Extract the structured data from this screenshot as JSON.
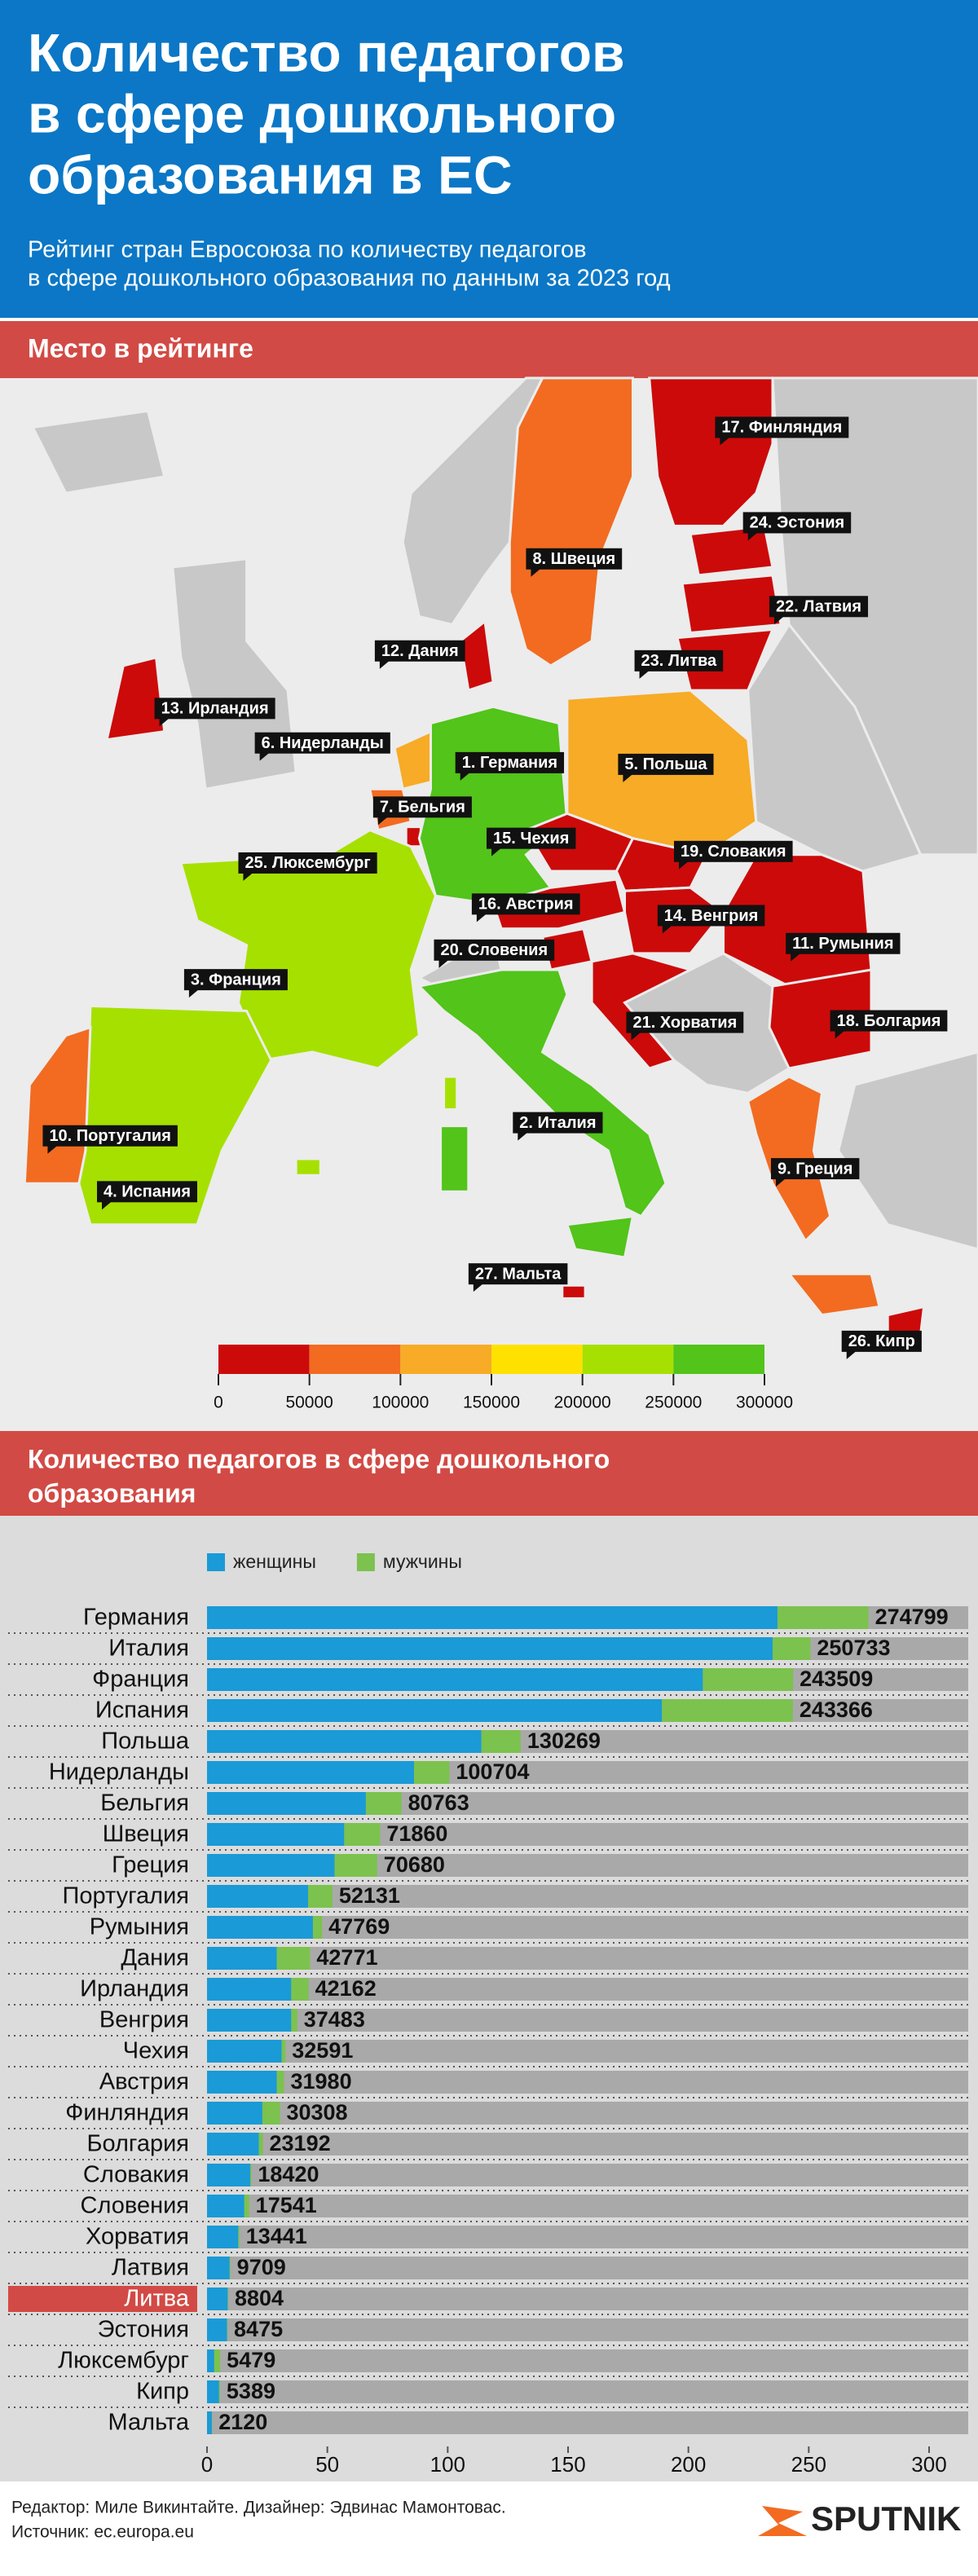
{
  "header": {
    "title_lines": [
      "Количество педагогов",
      "в сфере дошкольного",
      "образования в ЕС"
    ],
    "subtitle_lines": [
      "Рейтинг стран Евросоюза по количеству педагогов",
      "в сфере дошкольного образования по данным за 2023 год"
    ]
  },
  "map": {
    "section_title": "Место в рейтинге",
    "labels": [
      "17. Финляндия",
      "24. Эстония",
      "8. Швеция",
      "22. Латвия",
      "12. Дания",
      "23. Литва",
      "13. Ирландия",
      "6. Нидерланды",
      "1. Германия",
      "5. Польша",
      "7. Бельгия",
      "15. Чехия",
      "19. Словакия",
      "25. Люксембург",
      "16. Австрия",
      "14. Венгрия",
      "11. Румыния",
      "20. Словения",
      "3. Франция",
      "21. Хорватия",
      "18. Болгария",
      "10. Португалия",
      "2. Италия",
      "9. Греция",
      "4. Испания",
      "27. Мальта",
      "26. Кипр"
    ],
    "scale": {
      "colors": [
        "#cc0a0a",
        "#f26b21",
        "#f7ab26",
        "#ffe100",
        "#a6e000",
        "#52c41a"
      ],
      "ticks": [
        0,
        50000,
        100000,
        150000,
        200000,
        250000,
        300000
      ]
    }
  },
  "chart_data": {
    "type": "bar",
    "orientation": "horizontal",
    "stacked": true,
    "title_lines": [
      "Количество педагогов в сфере дошкольного",
      "образования"
    ],
    "categories": [
      "Германия",
      "Италия",
      "Франция",
      "Испания",
      "Польша",
      "Нидерланды",
      "Бельгия",
      "Швеция",
      "Греция",
      "Португалия",
      "Румыния",
      "Дания",
      "Ирландия",
      "Венгрия",
      "Чехия",
      "Австрия",
      "Финляндия",
      "Болгария",
      "Словакия",
      "Словения",
      "Хорватия",
      "Латвия",
      "Литва",
      "Эстония",
      "Люксембург",
      "Кипр",
      "Мальта"
    ],
    "series": [
      {
        "name": "женщины",
        "color": "#1a9ad6",
        "values": [
          237000,
          235000,
          206000,
          189000,
          114000,
          86000,
          66000,
          57000,
          53000,
          42000,
          44000,
          29000,
          35000,
          35000,
          31000,
          29000,
          23000,
          21500,
          18000,
          15500,
          13000,
          9400,
          8600,
          8300,
          3000,
          5000,
          2000
        ]
      },
      {
        "name": "мужчины",
        "color": "#7cc24e",
        "values": [
          37800,
          15700,
          37500,
          54400,
          16300,
          14700,
          14800,
          14900,
          17700,
          10100,
          3800,
          13800,
          7200,
          2500,
          1600,
          3000,
          7300,
          1700,
          420,
          2000,
          440,
          310,
          200,
          180,
          2480,
          390,
          120
        ]
      }
    ],
    "totals": [
      274799,
      250733,
      243509,
      243366,
      130269,
      100704,
      80763,
      71860,
      70680,
      52131,
      47769,
      42771,
      42162,
      37483,
      32591,
      31980,
      30308,
      23192,
      18420,
      17541,
      13441,
      9709,
      8804,
      8475,
      5479,
      5389,
      2120
    ],
    "highlight": "Литва",
    "xlim": [
      0,
      300000
    ],
    "xticks": [
      0,
      {
        "value": 50000,
        "label": "50"
      },
      {
        "value": 100000,
        "label": "100"
      },
      {
        "value": 150000,
        "label": "150"
      },
      {
        "value": 200000,
        "label": "200"
      },
      {
        "value": 250000,
        "label": "250"
      },
      {
        "value": 300000,
        "label": "300"
      }
    ]
  },
  "footer": {
    "credits": "Редактор: Миле Викинтайте.  Дизайнер: Эдвинас Мамонтовас.",
    "source": "Источник: ec.europa.eu",
    "logo": "SPUTNIK"
  }
}
